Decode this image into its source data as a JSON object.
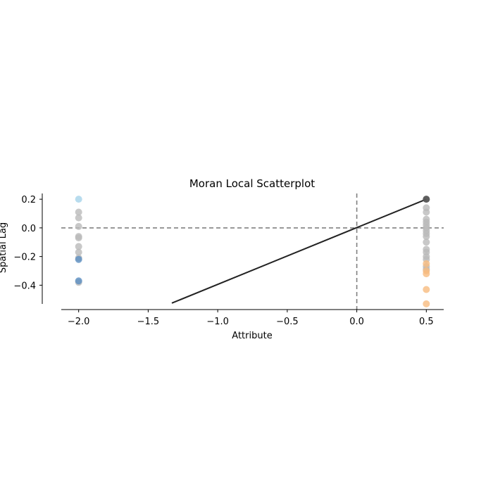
{
  "chart_data": {
    "type": "scatter",
    "title": "Moran Local Scatterplot",
    "xlabel": "Attribute",
    "ylabel": "Spatial Lag",
    "xlim": [
      -2.125,
      0.625
    ],
    "ylim": [
      -0.57,
      0.24
    ],
    "xticks": [
      {
        "value": -2.0,
        "label": "−2.0"
      },
      {
        "value": -1.5,
        "label": "−1.5"
      },
      {
        "value": -1.0,
        "label": "−1.0"
      },
      {
        "value": -0.5,
        "label": "−0.5"
      },
      {
        "value": 0.0,
        "label": "0.0"
      },
      {
        "value": 0.5,
        "label": "0.5"
      }
    ],
    "yticks": [
      {
        "value": 0.2,
        "label": "0.2"
      },
      {
        "value": 0.0,
        "label": "0.0"
      },
      {
        "value": -0.2,
        "label": "−0.2"
      },
      {
        "value": -0.4,
        "label": "−0.4"
      }
    ],
    "reference_lines": [
      {
        "orientation": "horizontal",
        "value": 0.0,
        "style": "dashed",
        "color": "#808080"
      },
      {
        "orientation": "vertical",
        "value": 0.0,
        "style": "dashed",
        "color": "#808080"
      }
    ],
    "regression_line": {
      "x": [
        -1.33,
        0.5
      ],
      "y": [
        -0.525,
        0.2
      ],
      "color": "#222222"
    },
    "grid": false,
    "legend": "none",
    "series": [
      {
        "category": "not significant",
        "color": "#bababa",
        "points": [
          {
            "x": -2.0,
            "y": 0.11
          },
          {
            "x": -2.0,
            "y": 0.07
          },
          {
            "x": -2.0,
            "y": 0.01
          },
          {
            "x": -2.0,
            "y": -0.06
          },
          {
            "x": -2.0,
            "y": -0.07
          },
          {
            "x": -2.0,
            "y": -0.13
          },
          {
            "x": -2.0,
            "y": -0.17
          },
          {
            "x": -2.0,
            "y": -0.21
          },
          {
            "x": -2.0,
            "y": -0.38
          },
          {
            "x": 0.5,
            "y": 0.2
          },
          {
            "x": 0.5,
            "y": 0.14
          },
          {
            "x": 0.5,
            "y": 0.11
          },
          {
            "x": 0.5,
            "y": 0.06
          },
          {
            "x": 0.5,
            "y": 0.04
          },
          {
            "x": 0.5,
            "y": 0.02
          },
          {
            "x": 0.5,
            "y": 0.0
          },
          {
            "x": 0.5,
            "y": -0.02
          },
          {
            "x": 0.5,
            "y": -0.04
          },
          {
            "x": 0.5,
            "y": -0.06
          },
          {
            "x": 0.5,
            "y": -0.1
          },
          {
            "x": 0.5,
            "y": -0.15
          },
          {
            "x": 0.5,
            "y": -0.17
          },
          {
            "x": 0.5,
            "y": -0.2
          },
          {
            "x": 0.5,
            "y": -0.22
          },
          {
            "x": 0.5,
            "y": -0.27
          },
          {
            "x": 0.5,
            "y": -0.29
          }
        ]
      },
      {
        "category": "high-high",
        "color": "#444444",
        "points": [
          {
            "x": 0.5,
            "y": 0.2
          }
        ]
      },
      {
        "category": "low-high",
        "color": "#a6d3ea",
        "points": [
          {
            "x": -2.0,
            "y": 0.2
          }
        ]
      },
      {
        "category": "low-low",
        "color": "#5b8fc2",
        "points": [
          {
            "x": -2.0,
            "y": -0.22
          },
          {
            "x": -2.0,
            "y": -0.37
          }
        ]
      },
      {
        "category": "high-low",
        "color": "#f8bb80",
        "points": [
          {
            "x": 0.5,
            "y": -0.25
          },
          {
            "x": 0.5,
            "y": -0.3
          },
          {
            "x": 0.5,
            "y": -0.32
          },
          {
            "x": 0.5,
            "y": -0.43
          },
          {
            "x": 0.5,
            "y": -0.53
          }
        ]
      }
    ]
  }
}
